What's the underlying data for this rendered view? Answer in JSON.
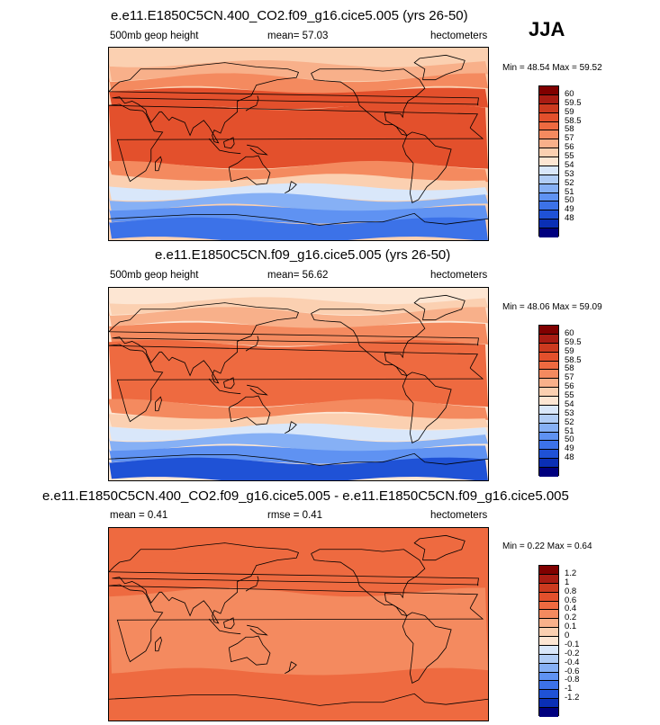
{
  "season": "JJA",
  "colors": {
    "abs_scale": [
      "#00007f",
      "#0a2fb5",
      "#1f52d6",
      "#3c72e8",
      "#5f92f2",
      "#86b0f5",
      "#b1cdf6",
      "#d9e7fa",
      "#fde6d3",
      "#fbd0b1",
      "#f8b08a",
      "#f48a5f",
      "#ee6a40",
      "#e3502c",
      "#cc3a1f",
      "#a91c13",
      "#800000"
    ],
    "diff_scale": [
      "#00007f",
      "#0a2fb5",
      "#1f52d6",
      "#3c72e8",
      "#5f92f2",
      "#86b0f5",
      "#b1cdf6",
      "#d9e7fa",
      "#fde6d3",
      "#fbd0b1",
      "#f8b08a",
      "#f48a5f",
      "#ee6a40",
      "#e3502c",
      "#cc3a1f",
      "#a91c13",
      "#800000"
    ]
  },
  "panels": [
    {
      "title": "e.e11.E1850C5CN.400_CO2.f09_g16.cice5.005 (yrs 26-50)",
      "left_label": "500mb geop height",
      "center_label": "mean=  57.03",
      "right_label": "hectometers",
      "minmax": "Min =  48.54 Max =  59.52"
    },
    {
      "title": "e.e11.E1850C5CN.f09_g16.cice5.005 (yrs 26-50)",
      "left_label": "500mb geop height",
      "center_label": "mean=  56.62",
      "right_label": "hectometers",
      "minmax": "Min =  48.06 Max =  59.09"
    },
    {
      "title": "e.e11.E1850C5CN.400_CO2.f09_g16.cice5.005 - e.e11.E1850C5CN.f09_g16.cice5.005",
      "left_label": "mean =   0.41",
      "center_label": "rmse =   0.41",
      "right_label": "hectometers",
      "minmax": "Min =  0.22 Max =  0.64"
    }
  ],
  "chart_data": [
    {
      "type": "heatmap",
      "title": "e.e11.E1850C5CN.400_CO2.f09_g16.cice5.005 (yrs 26-50)",
      "variable": "500mb geop height",
      "units": "hectometers",
      "mean": 57.03,
      "min": 48.54,
      "max": 59.52,
      "levels": [
        "60",
        "59.5",
        "59",
        "58.5",
        "58",
        "57",
        "56",
        "55",
        "54",
        "53",
        "52",
        "51",
        "50",
        "49",
        "48"
      ],
      "bands_north_to_south": [
        {
          "lat": [
            90,
            75
          ],
          "value": 55.5
        },
        {
          "lat": [
            75,
            62
          ],
          "value": 56.5
        },
        {
          "lat": [
            62,
            50
          ],
          "value": 57.5
        },
        {
          "lat": [
            50,
            35
          ],
          "value": 58.5
        },
        {
          "lat": [
            35,
            -20
          ],
          "value": 58.7
        },
        {
          "lat": [
            -20,
            -32
          ],
          "value": 57.5
        },
        {
          "lat": [
            -32,
            -40
          ],
          "value": 55.5
        },
        {
          "lat": [
            -40,
            -50
          ],
          "value": 53.5
        },
        {
          "lat": [
            -50,
            -60
          ],
          "value": 51.5
        },
        {
          "lat": [
            -60,
            -72
          ],
          "value": 50.5
        },
        {
          "lat": [
            -72,
            -90
          ],
          "value": 49
        }
      ]
    },
    {
      "type": "heatmap",
      "title": "e.e11.E1850C5CN.f09_g16.cice5.005 (yrs 26-50)",
      "variable": "500mb geop height",
      "units": "hectometers",
      "mean": 56.62,
      "min": 48.06,
      "max": 59.09,
      "levels": [
        "60",
        "59.5",
        "59",
        "58.5",
        "58",
        "57",
        "56",
        "55",
        "54",
        "53",
        "52",
        "51",
        "50",
        "49",
        "48"
      ],
      "bands_north_to_south": [
        {
          "lat": [
            90,
            78
          ],
          "value": 54.5
        },
        {
          "lat": [
            78,
            68
          ],
          "value": 55.5
        },
        {
          "lat": [
            68,
            55
          ],
          "value": 56.5
        },
        {
          "lat": [
            55,
            38
          ],
          "value": 57.5
        },
        {
          "lat": [
            38,
            -18
          ],
          "value": 58.3
        },
        {
          "lat": [
            -18,
            -30
          ],
          "value": 57.5
        },
        {
          "lat": [
            -30,
            -40
          ],
          "value": 55.5
        },
        {
          "lat": [
            -40,
            -50
          ],
          "value": 53.5
        },
        {
          "lat": [
            -50,
            -60
          ],
          "value": 51.5
        },
        {
          "lat": [
            -60,
            -72
          ],
          "value": 50
        },
        {
          "lat": [
            -72,
            -90
          ],
          "value": 48.5
        }
      ]
    },
    {
      "type": "heatmap",
      "title": "e.e11.E1850C5CN.400_CO2.f09_g16.cice5.005 - e.e11.E1850C5CN.f09_g16.cice5.005",
      "units": "hectometers",
      "mean": 0.41,
      "rmse": 0.41,
      "min": 0.22,
      "max": 0.64,
      "levels": [
        "1.2",
        "1",
        "0.8",
        "0.6",
        "0.4",
        "0.2",
        "0.1",
        "0",
        "-0.1",
        "-0.2",
        "-0.4",
        "-0.6",
        "-0.8",
        "-1",
        "-1.2"
      ],
      "bands_north_to_south": [
        {
          "lat": [
            90,
            60
          ],
          "value": 0.5
        },
        {
          "lat": [
            60,
            30
          ],
          "value": 0.45
        },
        {
          "lat": [
            30,
            -45
          ],
          "value": 0.35
        },
        {
          "lat": [
            -45,
            -90
          ],
          "value": 0.45
        }
      ]
    }
  ]
}
